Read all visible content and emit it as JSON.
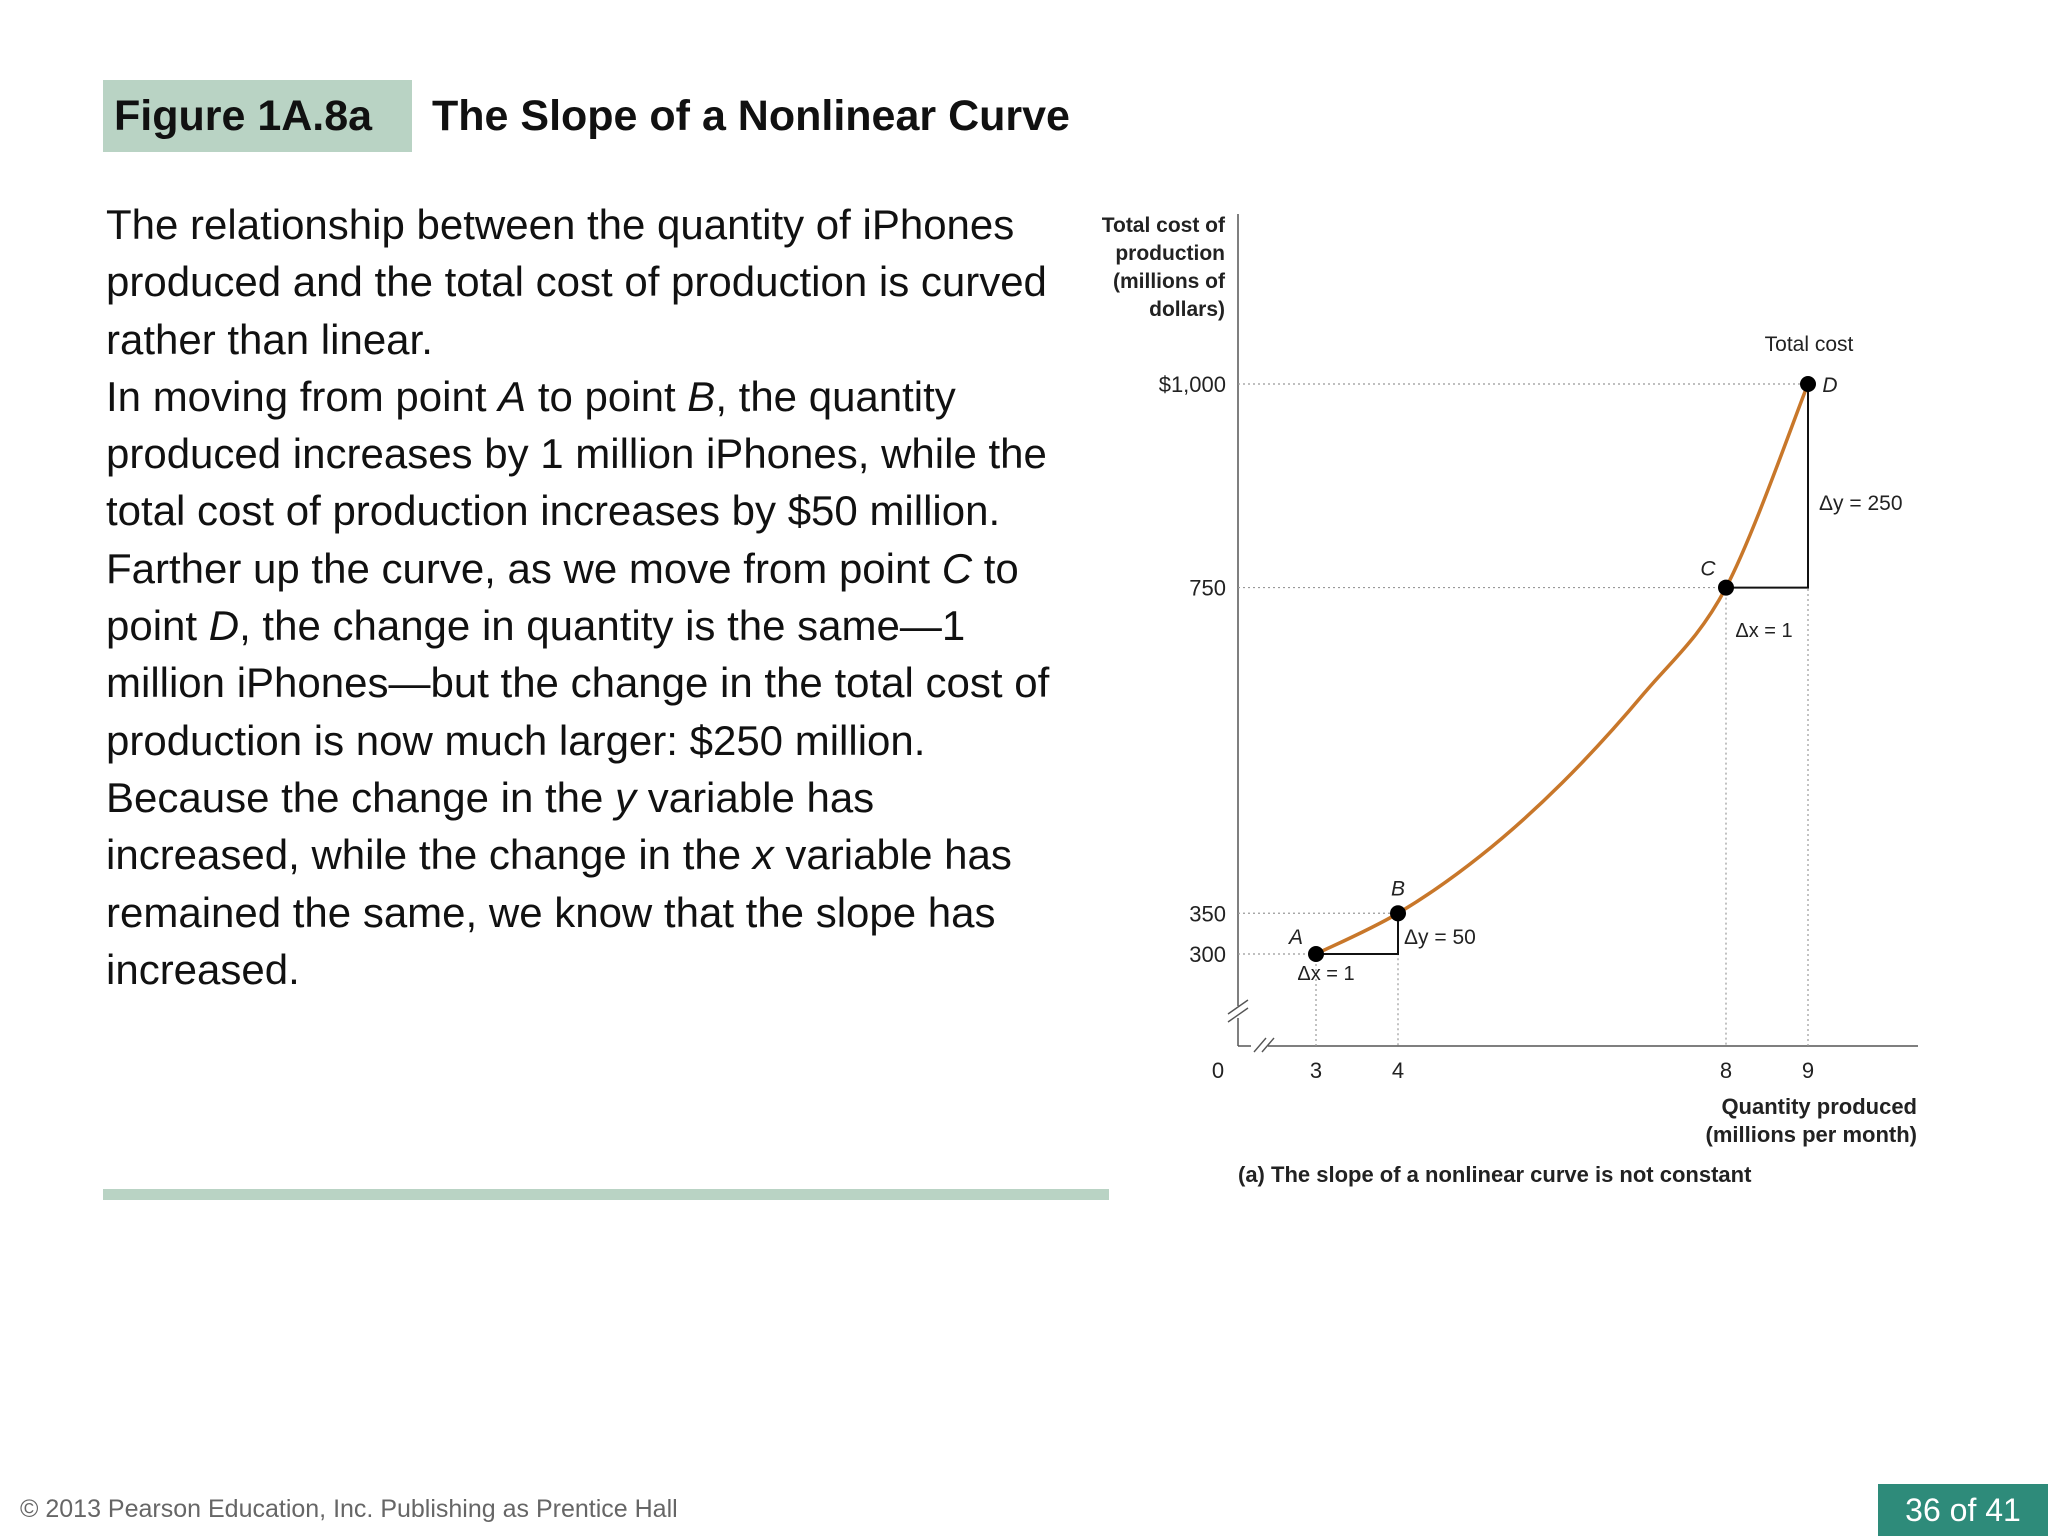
{
  "slide": {
    "figure_label": "Figure 1A.8a",
    "figure_title": "The Slope of a Nonlinear Curve",
    "paragraphs": [
      [
        {
          "t": "The relationship between the quantity of iPhones produced and the total cost of production is curved rather than linear."
        }
      ],
      [
        {
          "t": "In moving from point "
        },
        {
          "t": "A",
          "i": true
        },
        {
          "t": " to point "
        },
        {
          "t": "B",
          "i": true
        },
        {
          "t": ", the quantity produced increases by 1 million iPhones, while the total cost of production increases by $50 million."
        }
      ],
      [
        {
          "t": "Farther up the curve, as we move from point "
        },
        {
          "t": "C",
          "i": true
        },
        {
          "t": " to point "
        },
        {
          "t": "D",
          "i": true
        },
        {
          "t": ", the change in quantity is the same—1 million iPhones—but the change in the total cost of production is now much larger: $250 million."
        }
      ],
      [
        {
          "t": "Because the change in the "
        },
        {
          "t": "y",
          "i": true
        },
        {
          "t": " variable has increased, while the change in the "
        },
        {
          "t": "x",
          "i": true
        },
        {
          "t": " variable has remained the same, we know that the slope has increased."
        }
      ]
    ],
    "copyright": "© 2013 Pearson Education, Inc. Publishing as Prentice Hall",
    "page_number": "36 of 41"
  },
  "colors": {
    "label_bg": "#b9d3c4",
    "divider": "#b9d3c4",
    "curve": "#c8772a",
    "page_number_bg": "#2e8b7a"
  },
  "chart_data": {
    "type": "line",
    "ylabel": "Total cost of production (millions of dollars)",
    "xlabel": "Quantity produced (millions per month)",
    "caption": "(a) The slope of a nonlinear curve is not constant",
    "series": [
      {
        "name": "Total cost",
        "x": [
          3,
          4,
          5,
          6,
          7,
          8,
          9
        ],
        "y": [
          300,
          350,
          420,
          510,
          620,
          750,
          1000
        ]
      }
    ],
    "points": [
      {
        "label": "A",
        "x": 3,
        "y": 300
      },
      {
        "label": "B",
        "x": 4,
        "y": 350
      },
      {
        "label": "C",
        "x": 8,
        "y": 750
      },
      {
        "label": "D",
        "x": 9,
        "y": 1000
      }
    ],
    "annotations": [
      {
        "text": "Δx = 1",
        "segment": "A-B"
      },
      {
        "text": "Δy = 50",
        "segment": "A-B"
      },
      {
        "text": "Δx = 1",
        "segment": "C-D"
      },
      {
        "text": "Δy = 250",
        "segment": "C-D"
      }
    ],
    "x_ticks": [
      {
        "value": 0,
        "label": "0"
      },
      {
        "value": 3,
        "label": "3"
      },
      {
        "value": 4,
        "label": "4"
      },
      {
        "value": 8,
        "label": "8"
      },
      {
        "value": 9,
        "label": "9"
      }
    ],
    "y_ticks": [
      {
        "value": 300,
        "label": "300"
      },
      {
        "value": 350,
        "label": "350"
      },
      {
        "value": 750,
        "label": "750"
      },
      {
        "value": 1000,
        "label": "$1,000"
      }
    ],
    "axis_break": true,
    "grid": false
  }
}
